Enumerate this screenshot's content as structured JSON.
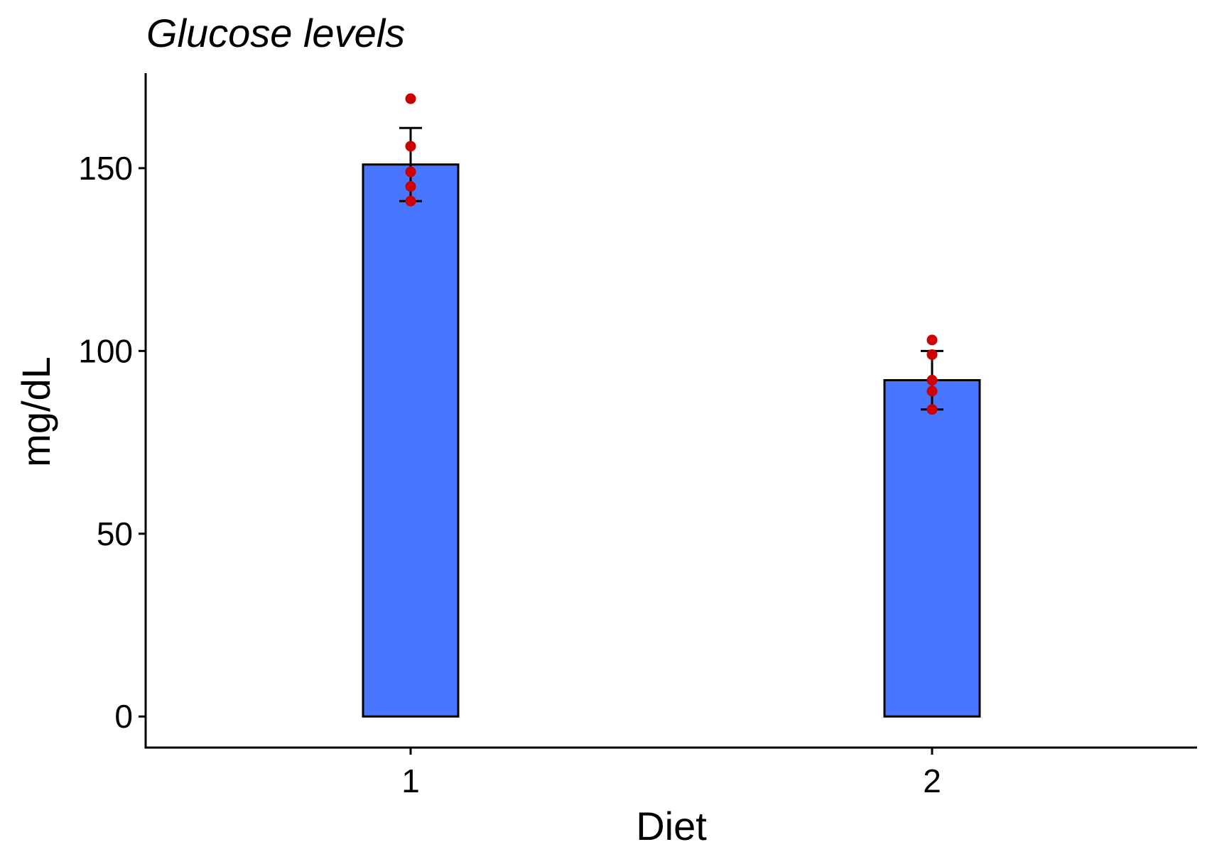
{
  "chart_data": {
    "type": "bar",
    "title": "Glucose levels",
    "xlabel": "Diet",
    "ylabel": "mg/dL",
    "categories": [
      "1",
      "2"
    ],
    "values": [
      151,
      92
    ],
    "error_bars": [
      {
        "low": 141,
        "high": 161
      },
      {
        "low": 84,
        "high": 100
      }
    ],
    "points": [
      {
        "category": "1",
        "values": [
          169,
          156,
          149,
          145,
          141
        ]
      },
      {
        "category": "2",
        "values": [
          103,
          99,
          92,
          89,
          84
        ]
      }
    ],
    "yticks": [
      0,
      50,
      100,
      150
    ],
    "ylim": [
      -8.5,
      176
    ],
    "grid": false,
    "legend": "none",
    "colors": {
      "bar_fill": "#4876FF",
      "bar_stroke": "#000000",
      "points": "#CC0000",
      "axis": "#000000"
    }
  }
}
